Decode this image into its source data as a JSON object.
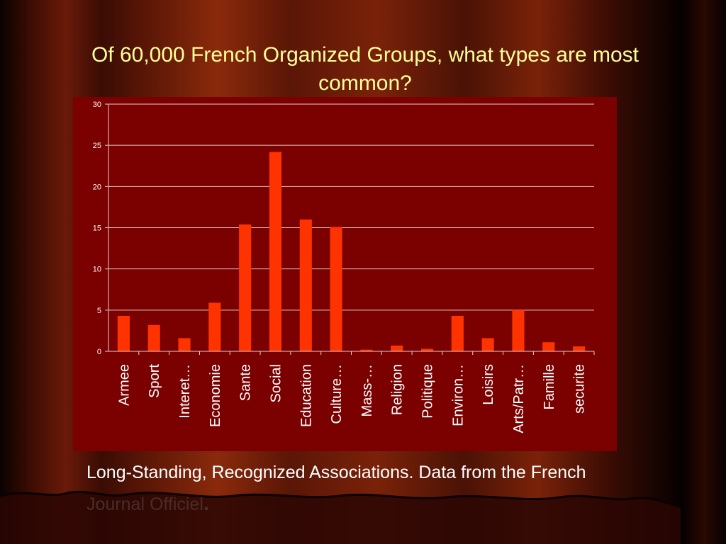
{
  "title": "Of 60,000 French Organized Groups, what types are most common?",
  "caption": "Long-Standing, Recognized Associations. Data from the French Journal Officiel",
  "caption_end": ".",
  "colors": {
    "bar": "#ff3300",
    "plot_bg": "#7b0000",
    "title": "#ffff99",
    "text": "#ffffff"
  },
  "chart_data": {
    "type": "bar",
    "title": "",
    "xlabel": "",
    "ylabel": "",
    "ylim": [
      0,
      30
    ],
    "yticks": [
      0,
      5,
      10,
      15,
      20,
      25,
      30
    ],
    "grid": true,
    "categories": [
      "Armee",
      "Sport",
      "Interet…",
      "Economie",
      "Sante",
      "Social",
      "Education",
      "Culture…",
      "Mass-…",
      "Religion",
      "Politique",
      "Environ…",
      "Loisirs",
      "Arts/Patr…",
      "Famille",
      "securite"
    ],
    "values": [
      4.3,
      3.2,
      1.6,
      5.9,
      15.4,
      24.2,
      16.0,
      15.1,
      0.2,
      0.7,
      0.3,
      4.3,
      1.6,
      5.0,
      1.1,
      0.6
    ]
  }
}
